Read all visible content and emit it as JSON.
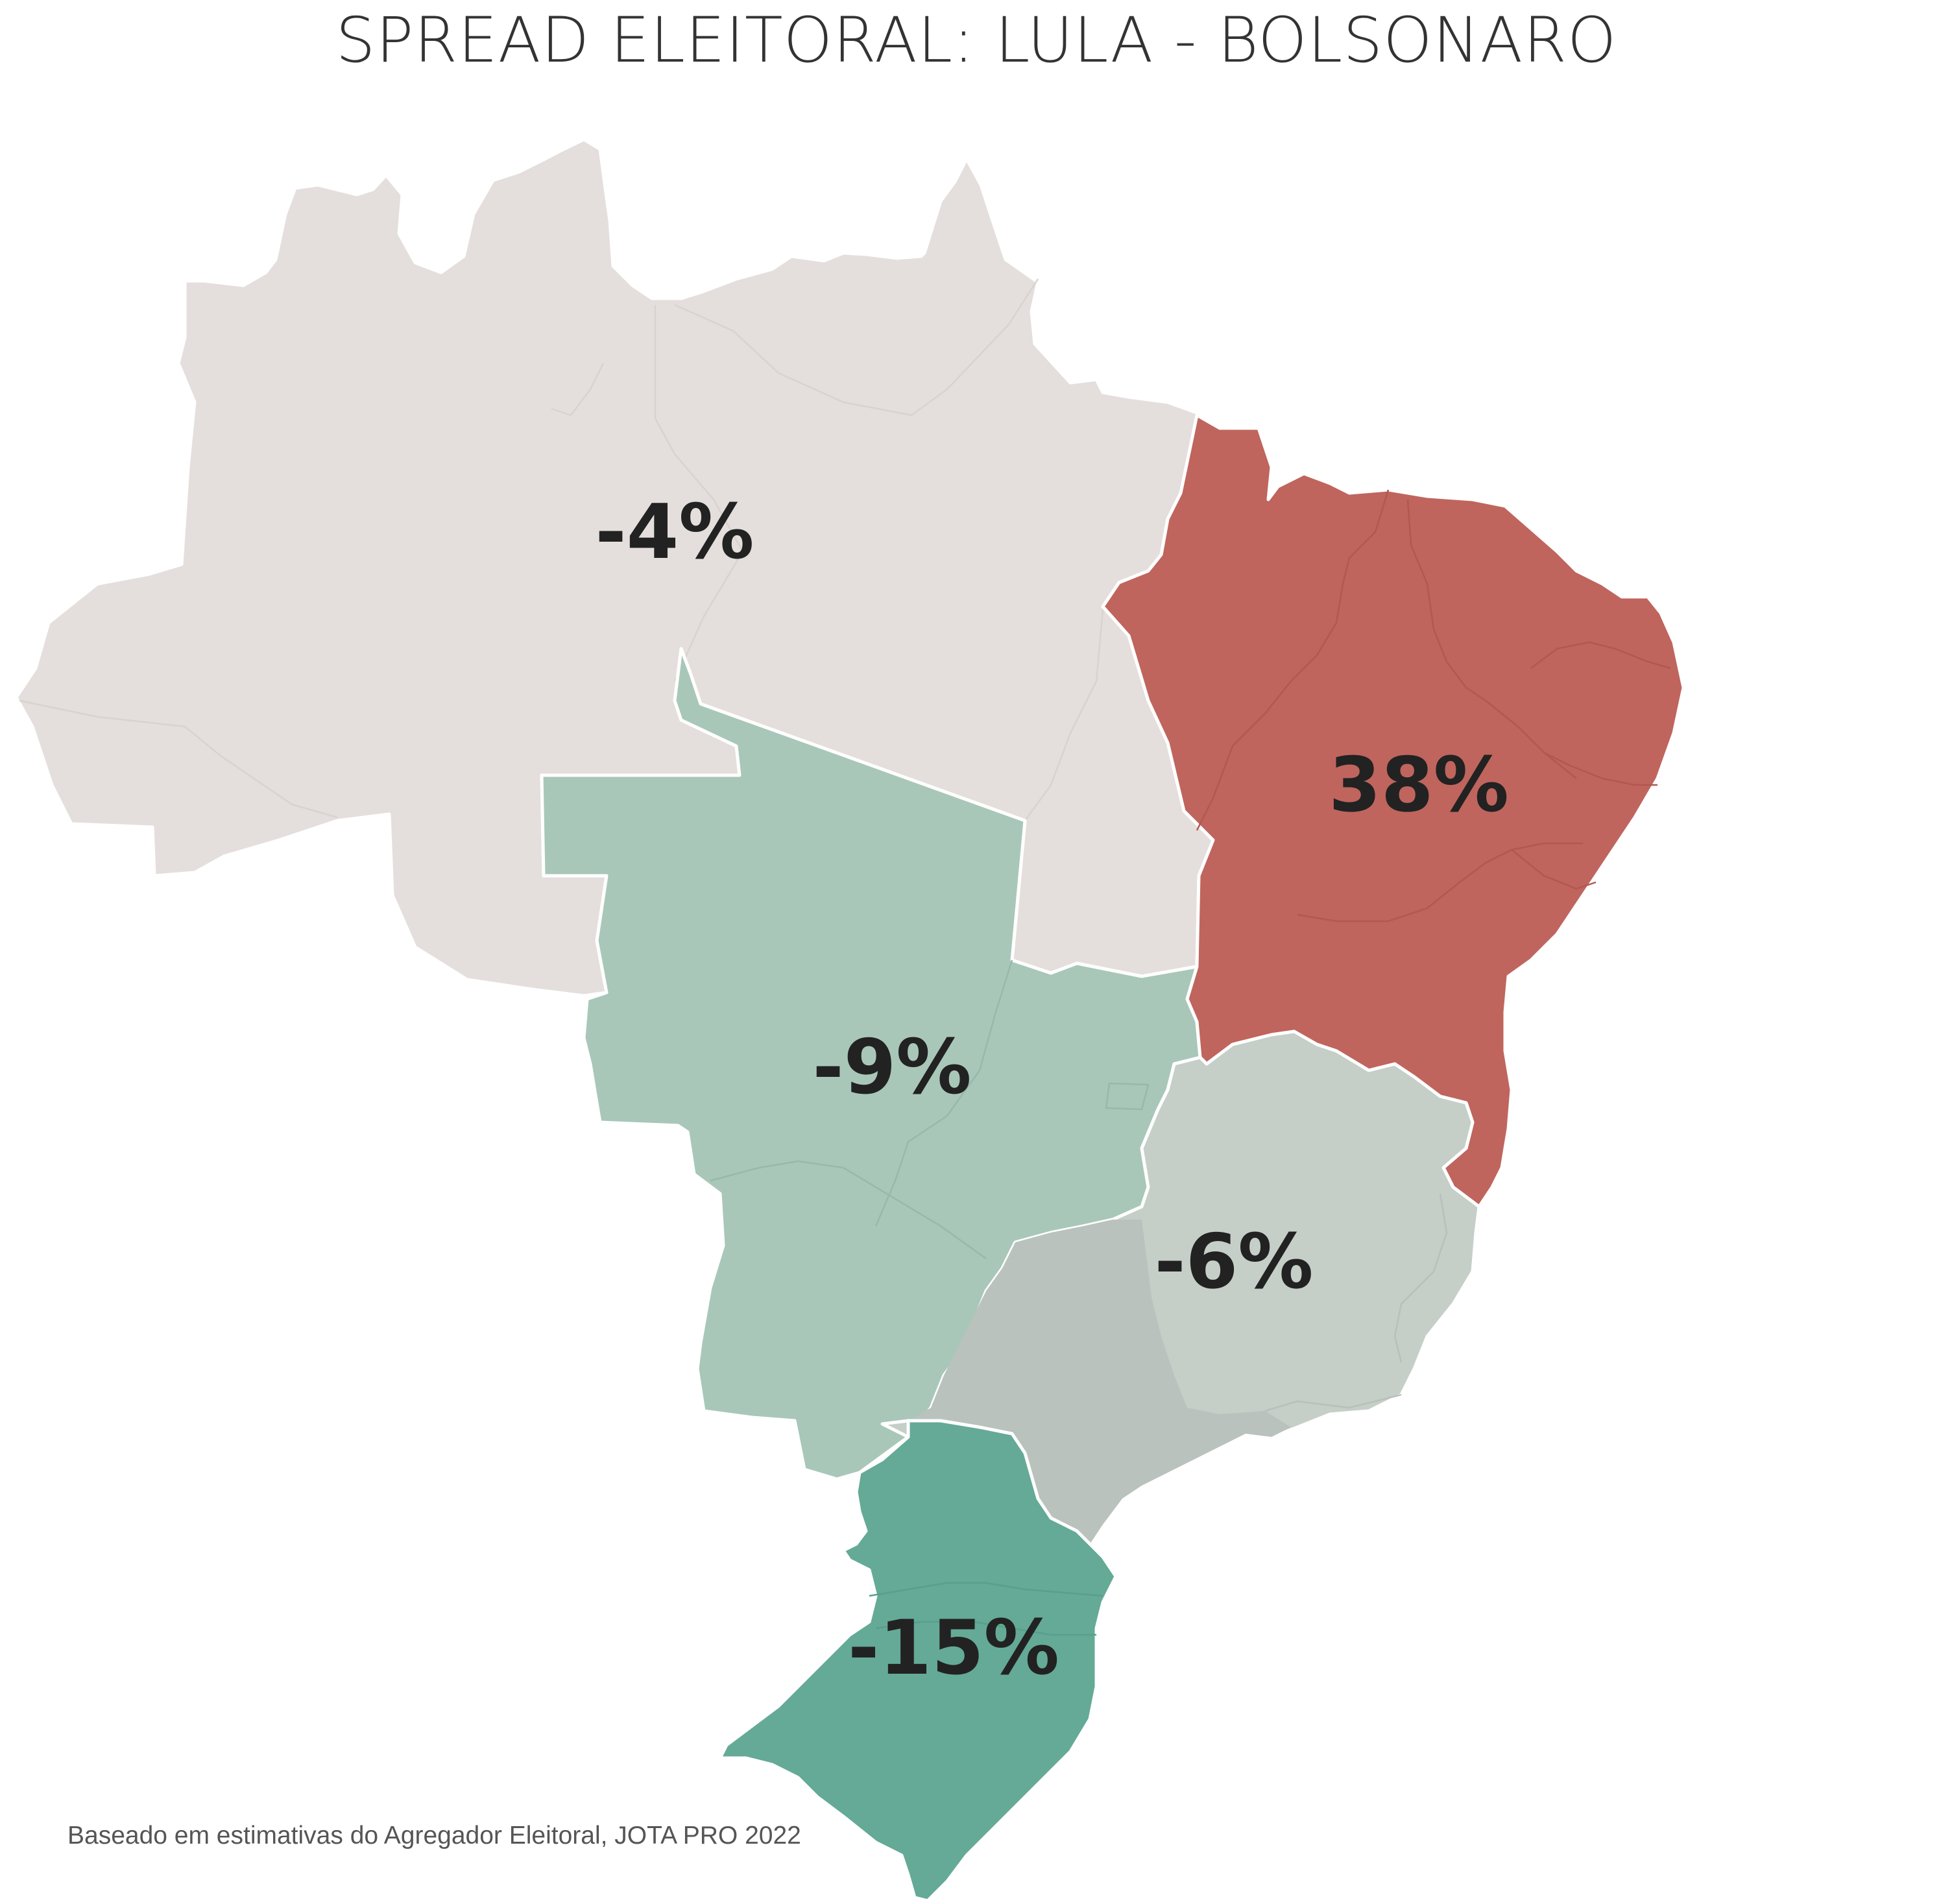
{
  "title": "SPREAD ELEITORAL: LULA - BOLSONARO",
  "source": "Baseado em estimativas do Agregador Eleitoral, JOTA PRO 2022",
  "colors": {
    "norte": "#e4dfdc",
    "nordeste": "#bf655d",
    "centro_oeste": "#a8c7b9",
    "sudeste": "#c5cfc8",
    "sul": "#64aa96"
  },
  "regions": [
    {
      "id": "norte",
      "value": "-4%"
    },
    {
      "id": "nordeste",
      "value": "38%"
    },
    {
      "id": "centro_oeste",
      "value": "-9%"
    },
    {
      "id": "sudeste",
      "value": "-6%"
    },
    {
      "id": "sul",
      "value": "-15%"
    }
  ]
}
